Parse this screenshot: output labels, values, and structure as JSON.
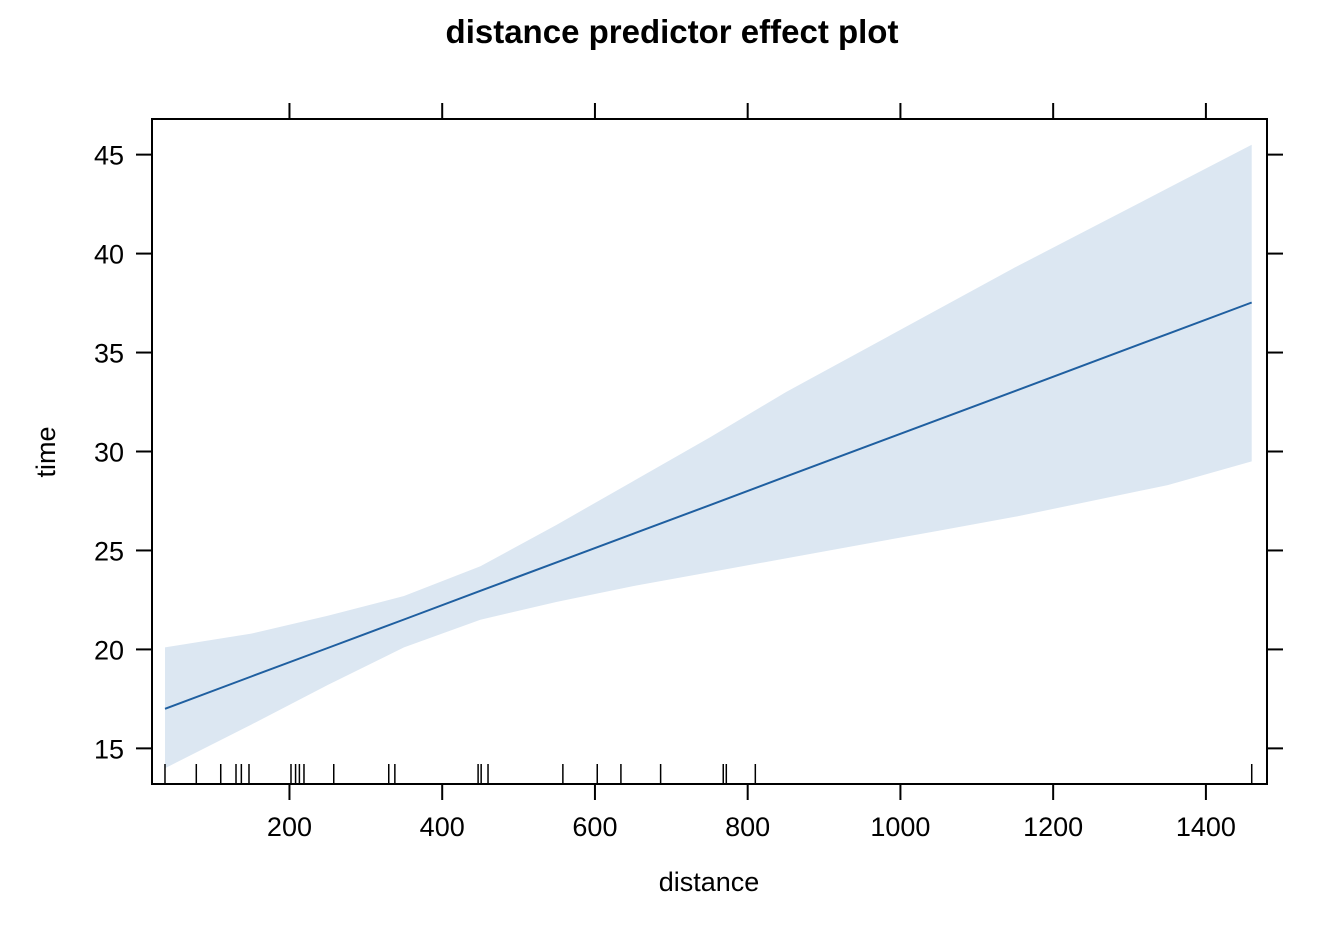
{
  "chart_data": {
    "type": "line",
    "title": "distance predictor effect plot",
    "xlabel": "distance",
    "ylabel": "time",
    "xlim": [
      20,
      1480
    ],
    "ylim": [
      13.2,
      46.8
    ],
    "x_ticks": [
      200,
      400,
      600,
      800,
      1000,
      1200,
      1400
    ],
    "y_ticks": [
      15,
      20,
      25,
      30,
      35,
      40,
      45
    ],
    "grid": false,
    "legend": "none",
    "series": [
      {
        "x": [
          37,
          150,
          250,
          350,
          450,
          550,
          650,
          750,
          850,
          950,
          1050,
          1150,
          1250,
          1350,
          1460
        ],
        "values": [
          17.0,
          18.63,
          20.07,
          21.51,
          22.96,
          24.4,
          25.84,
          27.28,
          28.73,
          30.17,
          31.61,
          33.05,
          34.5,
          35.94,
          37.53
        ],
        "lower": [
          14.0,
          16.2,
          18.2,
          20.1,
          21.5,
          22.4,
          23.2,
          23.9,
          24.6,
          25.3,
          26.0,
          26.7,
          27.5,
          28.3,
          29.5
        ],
        "upper": [
          20.1,
          20.8,
          21.7,
          22.7,
          24.2,
          26.3,
          28.5,
          30.7,
          33.0,
          35.1,
          37.2,
          39.3,
          41.3,
          43.3,
          45.5
        ]
      }
    ],
    "rug": [
      37,
      78,
      110,
      130,
      137,
      147,
      202,
      208,
      213,
      219,
      258,
      330,
      338,
      447,
      451,
      460,
      558,
      603,
      634,
      686,
      768,
      772,
      810,
      1460
    ],
    "colors": {
      "line": "#1f5fa0",
      "band": "#dce7f2",
      "axis": "#000000"
    }
  }
}
